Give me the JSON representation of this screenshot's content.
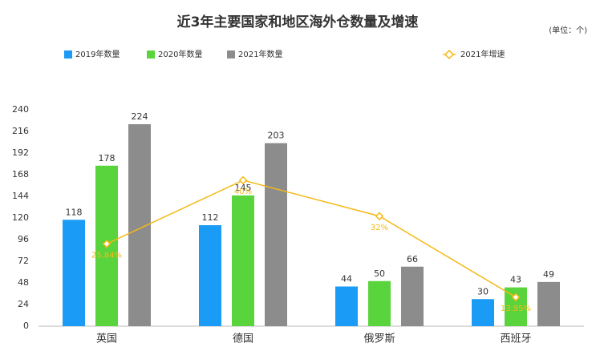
{
  "chart_data": {
    "type": "bar-line",
    "title": "近3年主要国家和地区海外仓数量及增速",
    "unit_note": "(单位：个)",
    "categories": [
      "英国",
      "德国",
      "俄罗斯",
      "西班牙"
    ],
    "series": [
      {
        "name": "2019年数量",
        "color": "#1a9bf5",
        "type": "bar",
        "values": [
          118,
          112,
          44,
          30
        ]
      },
      {
        "name": "2020年数量",
        "color": "#5ad43c",
        "type": "bar",
        "values": [
          178,
          145,
          50,
          43
        ]
      },
      {
        "name": "2021年数量",
        "color": "#8c8c8c",
        "type": "bar",
        "values": [
          224,
          203,
          66,
          49
        ]
      },
      {
        "name": "2021年增速",
        "color": "#f5b915",
        "type": "line",
        "axis": "y2",
        "values": [
          25.84,
          40,
          32,
          13.95
        ],
        "value_labels": [
          "25.84%",
          "40%",
          "32%",
          "13.95%"
        ]
      }
    ],
    "ylim": [
      0,
      240
    ],
    "yticks": [
      0,
      24,
      48,
      72,
      96,
      120,
      144,
      168,
      192,
      216,
      240
    ],
    "y2lim": [
      7.5,
      55.7
    ],
    "grid": false
  }
}
